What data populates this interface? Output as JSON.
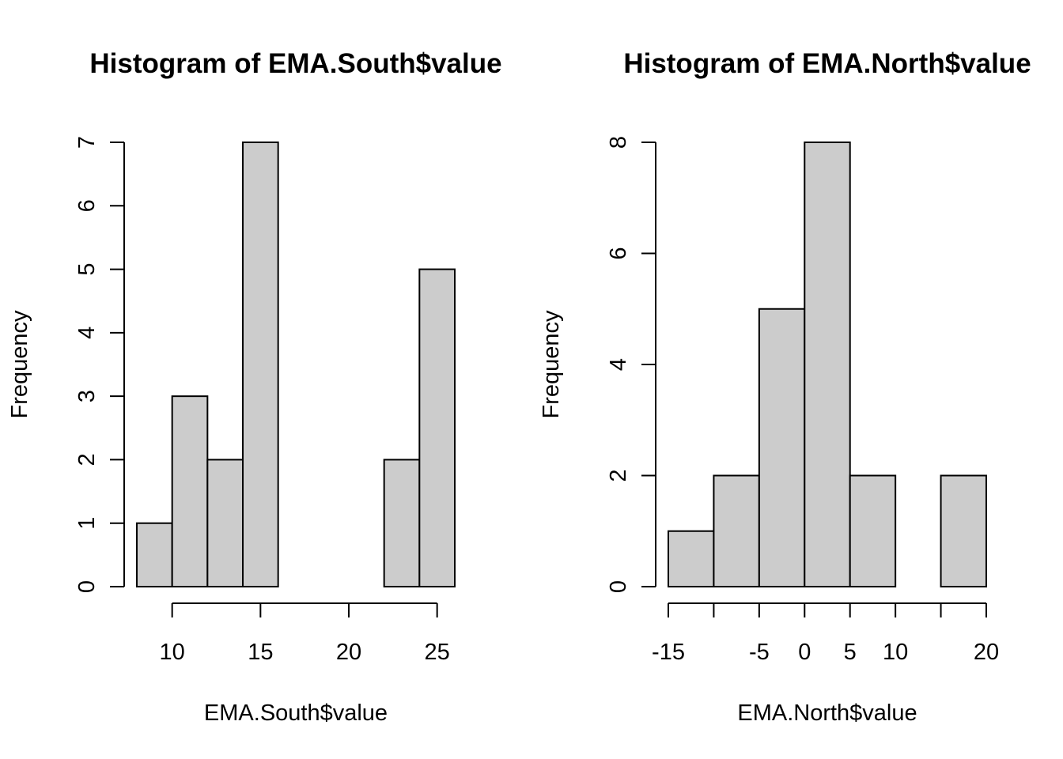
{
  "chart_data": [
    {
      "type": "bar",
      "title": "Histogram of EMA.South$value",
      "xlabel": "EMA.South$value",
      "ylabel": "Frequency",
      "bin_edges": [
        8,
        10,
        12,
        14,
        16,
        18,
        20,
        22,
        24,
        26
      ],
      "values": [
        1,
        3,
        2,
        7,
        0,
        0,
        0,
        2,
        5
      ],
      "xticks": [
        10,
        15,
        20,
        25
      ],
      "yticks": [
        0,
        1,
        2,
        3,
        4,
        5,
        6,
        7
      ],
      "ylim": [
        0,
        7
      ],
      "grid": false,
      "bar_fill": "#cccccc",
      "bar_stroke": "#000000"
    },
    {
      "type": "bar",
      "title": "Histogram of EMA.North$value",
      "xlabel": "EMA.North$value",
      "ylabel": "Frequency",
      "bin_edges": [
        -15,
        -10,
        -5,
        0,
        5,
        10,
        15,
        20
      ],
      "values": [
        1,
        2,
        5,
        8,
        2,
        0,
        2
      ],
      "xticks": [
        -15,
        -10,
        -5,
        0,
        5,
        10,
        15,
        20
      ],
      "xtick_labels": [
        "-15",
        "",
        "-5",
        "0",
        "5",
        "10",
        "",
        "20"
      ],
      "yticks": [
        0,
        2,
        4,
        6,
        8
      ],
      "ylim": [
        0,
        8
      ],
      "grid": false,
      "bar_fill": "#cccccc",
      "bar_stroke": "#000000"
    }
  ]
}
